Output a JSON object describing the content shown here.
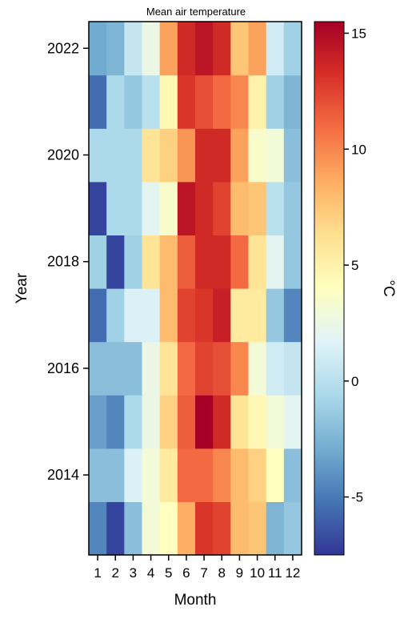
{
  "chart_data": {
    "type": "heatmap",
    "title": "Mean air temperature",
    "xlabel": "Month",
    "ylabel": "Year",
    "colorbar_label": "°C",
    "x": [
      1,
      2,
      3,
      4,
      5,
      6,
      7,
      8,
      9,
      10,
      11,
      12
    ],
    "y": [
      2013,
      2014,
      2015,
      2016,
      2017,
      2018,
      2019,
      2020,
      2021,
      2022
    ],
    "y_tick_labels": [
      "2014",
      "2016",
      "2018",
      "2020",
      "2022"
    ],
    "color_range": [
      -7.5,
      15.5
    ],
    "colorbar_ticks": [
      -5,
      0,
      5,
      10,
      15
    ],
    "colormap": [
      "#313695",
      "#4575b4",
      "#74add1",
      "#abd9e9",
      "#e0f3f8",
      "#ffffbf",
      "#fee090",
      "#fdae61",
      "#f46d43",
      "#d73027",
      "#a50026"
    ],
    "values": [
      [
        -4.5,
        -7.0,
        -2.0,
        3.0,
        4.0,
        8.5,
        13.0,
        12.5,
        8.0,
        7.5,
        -2.5,
        -1.5
      ],
      [
        -2.0,
        -2.0,
        1.5,
        3.0,
        5.5,
        11.0,
        11.0,
        10.0,
        8.0,
        7.0,
        4.0,
        -2.0
      ],
      [
        -3.5,
        -4.5,
        -0.5,
        2.5,
        7.0,
        11.5,
        15.5,
        13.5,
        6.0,
        4.5,
        3.0,
        2.0
      ],
      [
        -2.0,
        -2.0,
        -2.0,
        2.5,
        6.0,
        11.0,
        12.5,
        12.0,
        10.0,
        3.0,
        1.0,
        0.5
      ],
      [
        -5.5,
        -1.0,
        1.5,
        1.5,
        8.0,
        12.5,
        13.0,
        14.0,
        5.5,
        5.5,
        -1.5,
        -4.5
      ],
      [
        -1.0,
        -7.0,
        -1.0,
        6.0,
        8.0,
        11.5,
        13.5,
        13.5,
        11.0,
        6.0,
        2.0,
        -1.5
      ],
      [
        -7.0,
        -0.5,
        -0.5,
        2.0,
        3.5,
        14.5,
        13.5,
        12.5,
        8.0,
        7.5,
        0.0,
        -1.5
      ],
      [
        -0.5,
        -0.5,
        -0.5,
        6.0,
        7.0,
        9.5,
        13.5,
        13.5,
        9.0,
        3.5,
        3.0,
        -2.0
      ],
      [
        -5.5,
        -0.5,
        -1.5,
        0.0,
        4.5,
        13.0,
        12.0,
        11.0,
        10.0,
        5.0,
        -1.0,
        -2.5
      ],
      [
        -3.0,
        -2.5,
        0.5,
        2.5,
        9.0,
        13.5,
        14.5,
        13.5,
        7.5,
        9.0,
        1.0,
        -1.0
      ]
    ]
  }
}
